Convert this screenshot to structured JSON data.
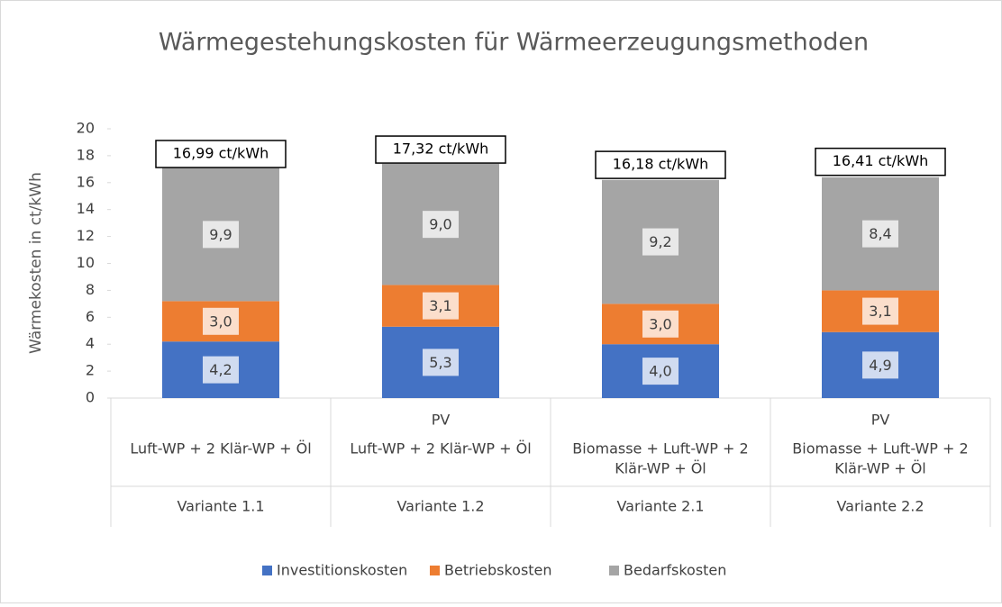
{
  "chart_data": {
    "type": "stacked_bar",
    "title": "Wärmegestehungskosten für Wärmeerzeugungsmethoden",
    "y_label": "Wärmekosten in ct/kWh",
    "categories": [
      "Variante 1.1",
      "Variante 1.2",
      "Variante 2.1",
      "Variante 2.2"
    ],
    "tech_labels": [
      [
        "Luft-WP + 2  Klär-WP + Öl"
      ],
      [
        "Luft-WP + 2  Klär-WP + Öl"
      ],
      [
        "Biomasse + Luft-WP + 2",
        "Klär-WP + Öl"
      ],
      [
        "Biomasse + Luft-WP + 2",
        "Klär-WP + Öl"
      ]
    ],
    "pv_labels": [
      null,
      "PV",
      null,
      "PV"
    ],
    "series": [
      {
        "name": "Investitionskosten",
        "color": "#4472c4",
        "values": [
          4.2,
          5.3,
          4.0,
          4.9
        ],
        "value_labels": [
          "4,2",
          "5,3",
          "4,0",
          "4,9"
        ]
      },
      {
        "name": "Betriebskosten",
        "color": "#ed7d31",
        "values": [
          3.0,
          3.1,
          3.0,
          3.1
        ],
        "value_labels": [
          "3,0",
          "3,1",
          "3,0",
          "3,1"
        ]
      },
      {
        "name": "Bedarfskosten",
        "color": "#a5a5a5",
        "values": [
          9.9,
          9.0,
          9.2,
          8.4
        ],
        "value_labels": [
          "9,9",
          "9,0",
          "9,2",
          "8,4"
        ]
      }
    ],
    "totals": {
      "values": [
        16.99,
        17.32,
        16.18,
        16.41
      ],
      "value_labels": [
        "16,99 ct/kWh",
        "17,32 ct/kWh",
        "16,18 ct/kWh",
        "16,41 ct/kWh"
      ]
    },
    "ylim": [
      0,
      20
    ],
    "yticks": [
      0,
      2,
      4,
      6,
      8,
      10,
      12,
      14,
      16,
      18,
      20
    ],
    "legend": "bottom"
  }
}
